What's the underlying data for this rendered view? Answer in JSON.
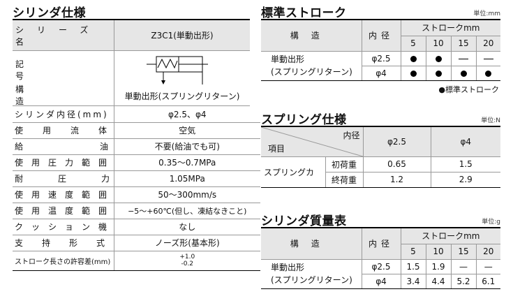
{
  "left": {
    "title": "シリンダ仕様",
    "series_label": "シリーズ名",
    "series_value": "Z3C1(単動出形)",
    "symbol_label_1": "記号",
    "symbol_label_2": "構造",
    "structure_value": "単動出形(スプリングリターン)",
    "rows": [
      {
        "label": "シリンダ内径(mm)",
        "value": "φ2.5、φ4"
      },
      {
        "label": "使用流体",
        "value": "空気"
      },
      {
        "label": "給油",
        "value": "不要(給油でも可)"
      },
      {
        "label": "使用圧力範囲",
        "value": "0.35〜0.7MPa"
      },
      {
        "label": "耐圧力",
        "value": "1.05MPa"
      },
      {
        "label": "使用速度範囲",
        "value": "50〜300mm/s"
      },
      {
        "label": "使用温度範囲",
        "value": "−5〜+60℃(但し、凍結なきこと)"
      },
      {
        "label": "クッション機構",
        "value": "なし"
      },
      {
        "label": "支持形式",
        "value": "ノーズ形(基本形)"
      }
    ],
    "tolerance_label": "ストローク長さの許容差(mm)",
    "tolerance_plus": "+1.0",
    "tolerance_minus": "-0.2"
  },
  "std_stroke": {
    "title": "標準ストローク",
    "unit": "単位:mm",
    "col_structure": "構造",
    "col_bore": "内径",
    "col_stroke": "ストロークmm",
    "strokes": [
      "5",
      "10",
      "15",
      "20"
    ],
    "structure_1": "単動出形",
    "structure_2": "(スプリングリターン)",
    "rows": [
      {
        "bore": "φ2.5",
        "marks": [
          "dot",
          "dot",
          "dash",
          "dash"
        ]
      },
      {
        "bore": "φ4",
        "marks": [
          "dot",
          "dot",
          "dot",
          "dot"
        ]
      }
    ],
    "legend": "●標準ストローク"
  },
  "spring": {
    "title": "スプリング仕様",
    "unit": "単位:N",
    "corner_top": "内径",
    "corner_bottom": "項目",
    "bores": [
      "φ2.5",
      "φ4"
    ],
    "item": "スプリングカ",
    "rows": [
      {
        "name": "初荷重",
        "values": [
          "0.65",
          "1.5"
        ]
      },
      {
        "name": "終荷重",
        "values": [
          "1.2",
          "2.9"
        ]
      }
    ]
  },
  "mass": {
    "title": "シリンダ質量表",
    "unit": "単位:g",
    "col_structure": "構造",
    "col_bore": "内径",
    "col_stroke": "ストロークmm",
    "strokes": [
      "5",
      "10",
      "15",
      "20"
    ],
    "structure_1": "単動出形",
    "structure_2": "(スプリングリターン)",
    "rows": [
      {
        "bore": "φ2.5",
        "values": [
          "1.5",
          "1.9",
          "—",
          "—"
        ]
      },
      {
        "bore": "φ4",
        "values": [
          "3.4",
          "4.4",
          "5.2",
          "6.1"
        ]
      }
    ]
  }
}
